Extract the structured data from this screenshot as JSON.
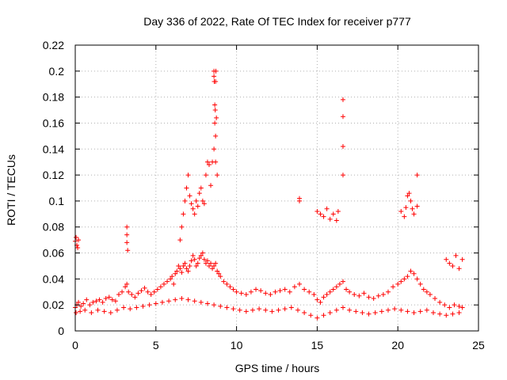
{
  "chart_data": {
    "type": "scatter",
    "title": "Day 336 of 2022, Rate Of TEC Index for receiver p777",
    "xlabel": "GPS time / hours",
    "ylabel": "ROTI / TECUs",
    "xlim": [
      0,
      25
    ],
    "ylim": [
      0,
      0.22
    ],
    "xticks": [
      0,
      5,
      10,
      15,
      20,
      25
    ],
    "yticks": [
      0,
      0.02,
      0.04,
      0.06,
      0.08,
      0.1,
      0.12,
      0.14,
      0.16,
      0.18,
      0.2,
      0.22
    ],
    "grid": true,
    "marker": "+",
    "color": "#ff0000",
    "series": [
      {
        "x": [
          0.0,
          0.1,
          0.2,
          0.35,
          0.5,
          0.7,
          0.9,
          1.1,
          1.3,
          1.5,
          1.7,
          1.9,
          2.1,
          2.3,
          2.5,
          2.7,
          2.9,
          3.1,
          3.2,
          3.3,
          3.5,
          3.7,
          3.9,
          4.1,
          4.3,
          4.5,
          4.7,
          4.9,
          5.1,
          5.3,
          5.5,
          5.7,
          5.9,
          6.0,
          6.1,
          6.2,
          6.3,
          6.4,
          6.5,
          6.6,
          6.7,
          6.8,
          6.9,
          7.0,
          7.1,
          7.2,
          7.3,
          7.4,
          7.5,
          7.6,
          7.7,
          7.8,
          7.9,
          8.0,
          8.1,
          8.2,
          8.3,
          8.4,
          8.5,
          8.6,
          8.7,
          8.8,
          8.9,
          9.0,
          9.2,
          9.4,
          9.6,
          9.8,
          10.0,
          10.3,
          10.6,
          10.9,
          11.2,
          11.5,
          11.8,
          12.1,
          12.4,
          12.7,
          13.0,
          13.3,
          13.6,
          13.9,
          14.2,
          14.5,
          14.8,
          15.0,
          15.2,
          15.4,
          15.6,
          15.8,
          16.0,
          16.2,
          16.4,
          16.6,
          16.8,
          17.0,
          17.3,
          17.6,
          17.9,
          18.2,
          18.5,
          18.8,
          19.1,
          19.4,
          19.7,
          20.0,
          20.2,
          20.4,
          20.6,
          20.8,
          21.0,
          21.2,
          21.4,
          21.6,
          21.8,
          22.0,
          22.3,
          22.6,
          22.9,
          23.2,
          23.5,
          23.8,
          24.0,
          0.05,
          0.3,
          0.6,
          1.0,
          1.4,
          1.8,
          2.2,
          2.6,
          3.0,
          3.4,
          3.8,
          4.2,
          4.6,
          5.0,
          5.4,
          5.8,
          6.2,
          6.6,
          7.0,
          7.4,
          7.8,
          8.2,
          8.6,
          9.0,
          9.4,
          9.8,
          10.2,
          10.6,
          11.0,
          11.4,
          11.8,
          12.2,
          12.6,
          13.0,
          13.4,
          13.8,
          14.2,
          14.6,
          15.0,
          15.4,
          15.8,
          16.2,
          16.6,
          17.0,
          17.4,
          17.8,
          18.2,
          18.6,
          19.0,
          19.4,
          19.8,
          20.2,
          20.6,
          21.0,
          21.4,
          21.8,
          22.2,
          22.6,
          23.0,
          23.4,
          23.8,
          0.0,
          0.05,
          0.1,
          0.15,
          0.2,
          3.2,
          3.2,
          3.2,
          3.25,
          6.5,
          6.6,
          6.7,
          6.8,
          6.9,
          7.0,
          7.1,
          7.2,
          7.3,
          7.4,
          7.5,
          7.6,
          7.7,
          7.8,
          7.9,
          8.0,
          8.1,
          8.2,
          8.3,
          8.4,
          8.5,
          8.6,
          8.6,
          8.62,
          8.65,
          8.65,
          8.68,
          8.7,
          8.7,
          8.72,
          8.75,
          8.6,
          8.7,
          8.8,
          13.9,
          13.9,
          15.0,
          15.2,
          15.4,
          15.6,
          15.8,
          16.0,
          16.2,
          16.3,
          16.6,
          16.6,
          16.6,
          16.6,
          20.2,
          20.4,
          20.5,
          20.6,
          20.7,
          20.8,
          20.9,
          21.0,
          21.2,
          21.2,
          23.0,
          23.2,
          23.4,
          23.6,
          23.8,
          24.0
        ],
        "y": [
          0.018,
          0.02,
          0.022,
          0.019,
          0.021,
          0.024,
          0.02,
          0.022,
          0.023,
          0.024,
          0.022,
          0.025,
          0.026,
          0.024,
          0.023,
          0.028,
          0.03,
          0.034,
          0.036,
          0.03,
          0.028,
          0.026,
          0.029,
          0.031,
          0.033,
          0.03,
          0.028,
          0.03,
          0.032,
          0.034,
          0.036,
          0.038,
          0.04,
          0.042,
          0.036,
          0.044,
          0.046,
          0.05,
          0.048,
          0.045,
          0.05,
          0.052,
          0.048,
          0.046,
          0.05,
          0.054,
          0.058,
          0.055,
          0.05,
          0.052,
          0.056,
          0.058,
          0.06,
          0.055,
          0.052,
          0.054,
          0.05,
          0.052,
          0.048,
          0.05,
          0.052,
          0.046,
          0.044,
          0.042,
          0.038,
          0.036,
          0.034,
          0.032,
          0.03,
          0.029,
          0.028,
          0.03,
          0.032,
          0.031,
          0.029,
          0.028,
          0.03,
          0.031,
          0.032,
          0.03,
          0.034,
          0.036,
          0.032,
          0.03,
          0.028,
          0.024,
          0.022,
          0.026,
          0.028,
          0.03,
          0.032,
          0.034,
          0.036,
          0.038,
          0.032,
          0.03,
          0.028,
          0.027,
          0.029,
          0.026,
          0.025,
          0.027,
          0.028,
          0.03,
          0.034,
          0.036,
          0.038,
          0.04,
          0.042,
          0.046,
          0.044,
          0.04,
          0.036,
          0.032,
          0.03,
          0.028,
          0.025,
          0.022,
          0.02,
          0.018,
          0.02,
          0.019,
          0.018,
          0.014,
          0.015,
          0.016,
          0.014,
          0.016,
          0.015,
          0.014,
          0.016,
          0.018,
          0.017,
          0.018,
          0.019,
          0.02,
          0.021,
          0.022,
          0.023,
          0.024,
          0.025,
          0.024,
          0.023,
          0.022,
          0.021,
          0.02,
          0.019,
          0.018,
          0.017,
          0.016,
          0.015,
          0.016,
          0.017,
          0.016,
          0.015,
          0.016,
          0.017,
          0.018,
          0.016,
          0.014,
          0.012,
          0.01,
          0.012,
          0.014,
          0.016,
          0.018,
          0.016,
          0.015,
          0.014,
          0.013,
          0.014,
          0.015,
          0.016,
          0.017,
          0.016,
          0.015,
          0.014,
          0.015,
          0.016,
          0.014,
          0.013,
          0.012,
          0.013,
          0.014,
          0.069,
          0.072,
          0.066,
          0.064,
          0.07,
          0.068,
          0.074,
          0.08,
          0.062,
          0.07,
          0.08,
          0.09,
          0.1,
          0.11,
          0.12,
          0.104,
          0.098,
          0.094,
          0.09,
          0.1,
          0.096,
          0.106,
          0.11,
          0.1,
          0.098,
          0.12,
          0.13,
          0.128,
          0.112,
          0.13,
          0.2,
          0.196,
          0.192,
          0.174,
          0.16,
          0.17,
          0.15,
          0.192,
          0.2,
          0.164,
          0.14,
          0.13,
          0.12,
          0.102,
          0.1,
          0.092,
          0.09,
          0.088,
          0.094,
          0.086,
          0.09,
          0.085,
          0.092,
          0.178,
          0.165,
          0.142,
          0.12,
          0.092,
          0.088,
          0.095,
          0.104,
          0.106,
          0.1,
          0.094,
          0.09,
          0.12,
          0.096,
          0.055,
          0.052,
          0.05,
          0.058,
          0.048,
          0.055
        ]
      }
    ]
  }
}
